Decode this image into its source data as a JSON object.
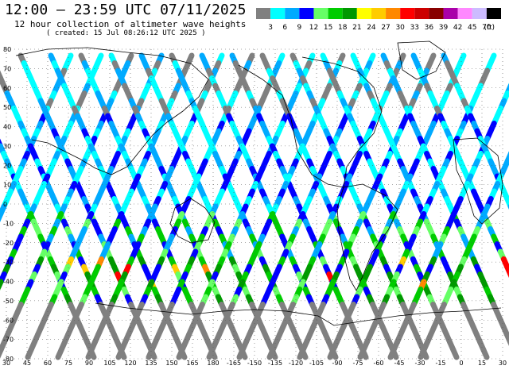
{
  "header": {
    "title": "12:00 – 23:59 UTC 07/11/2025",
    "subtitle": "12 hour collection of altimeter wave heights",
    "created": "( created: 15 Jul 08:26:12 UTC 2025 )"
  },
  "legend": {
    "colors": [
      "#808080",
      "#00ffff",
      "#00aaff",
      "#0000ff",
      "#66ff66",
      "#00cc00",
      "#009900",
      "#ffff00",
      "#ffcc00",
      "#ff8800",
      "#ff0000",
      "#cc0000",
      "#880000",
      "#aa00aa",
      "#ff88ff",
      "#ccbbff",
      "#000000"
    ],
    "labels": [
      "3",
      "6",
      "9",
      "12",
      "15",
      "18",
      "21",
      "24",
      "27",
      "30",
      "33",
      "36",
      "39",
      "42",
      "45",
      "70"
    ],
    "unit": "(ft)"
  },
  "map": {
    "lat_labels": [
      "80",
      "70",
      "60",
      "50",
      "40",
      "30",
      "20",
      "10",
      "0",
      "-10",
      "-20",
      "-30",
      "-40",
      "-50",
      "-60",
      "-70",
      "-80"
    ],
    "lon_labels": [
      "30",
      "45",
      "60",
      "75",
      "90",
      "105",
      "120",
      "135",
      "150",
      "165",
      "180",
      "-165",
      "-150",
      "-135",
      "-120",
      "-105",
      "-90",
      "-75",
      "-60",
      "-45",
      "-30",
      "-15",
      "0",
      "15",
      "30"
    ]
  }
}
